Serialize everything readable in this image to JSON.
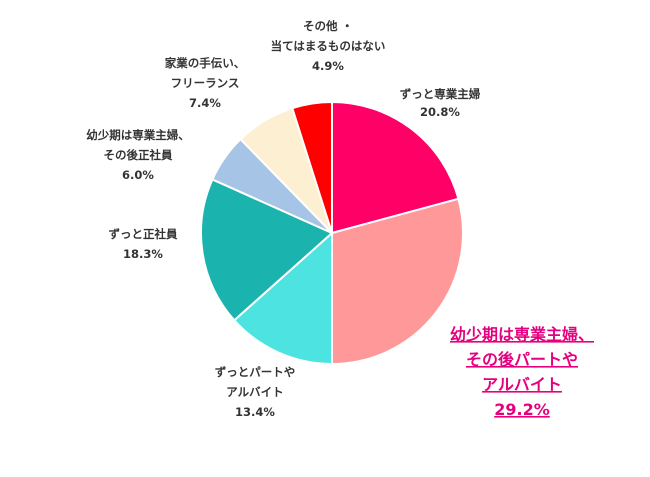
{
  "chart_data": {
    "type": "pie",
    "start_angle_deg": 0,
    "direction": "clockwise",
    "slices": [
      {
        "label": [
          "ずっと専業主婦"
        ],
        "value": 20.8,
        "display": "20.8%",
        "color": "#ff0066",
        "highlight": false
      },
      {
        "label": [
          "幼少期は専業主婦、",
          "その後パートや",
          "アルバイト"
        ],
        "value": 29.2,
        "display": "29.2%",
        "color": "#ff9999",
        "highlight": true
      },
      {
        "label": [
          "ずっとパートや",
          "アルバイト"
        ],
        "value": 13.4,
        "display": "13.4%",
        "color": "#4de3e0",
        "highlight": false
      },
      {
        "label": [
          "ずっと正社員"
        ],
        "value": 18.3,
        "display": "18.3%",
        "color": "#1ab3ad",
        "highlight": false
      },
      {
        "label": [
          "幼少期は専業主婦、",
          "その後正社員"
        ],
        "value": 6.0,
        "display": "6.0%",
        "color": "#a6c4e6",
        "highlight": false
      },
      {
        "label": [
          "家業の手伝い、",
          "フリーランス"
        ],
        "value": 7.4,
        "display": "7.4%",
        "color": "#fdf0d2",
        "highlight": false
      },
      {
        "label": [
          "その他 ・",
          "当てはまるものはない"
        ],
        "value": 4.9,
        "display": "4.9%",
        "color": "#ff0000",
        "highlight": false
      }
    ],
    "highlight_color": "#e4007f",
    "label_color": "#333333"
  }
}
